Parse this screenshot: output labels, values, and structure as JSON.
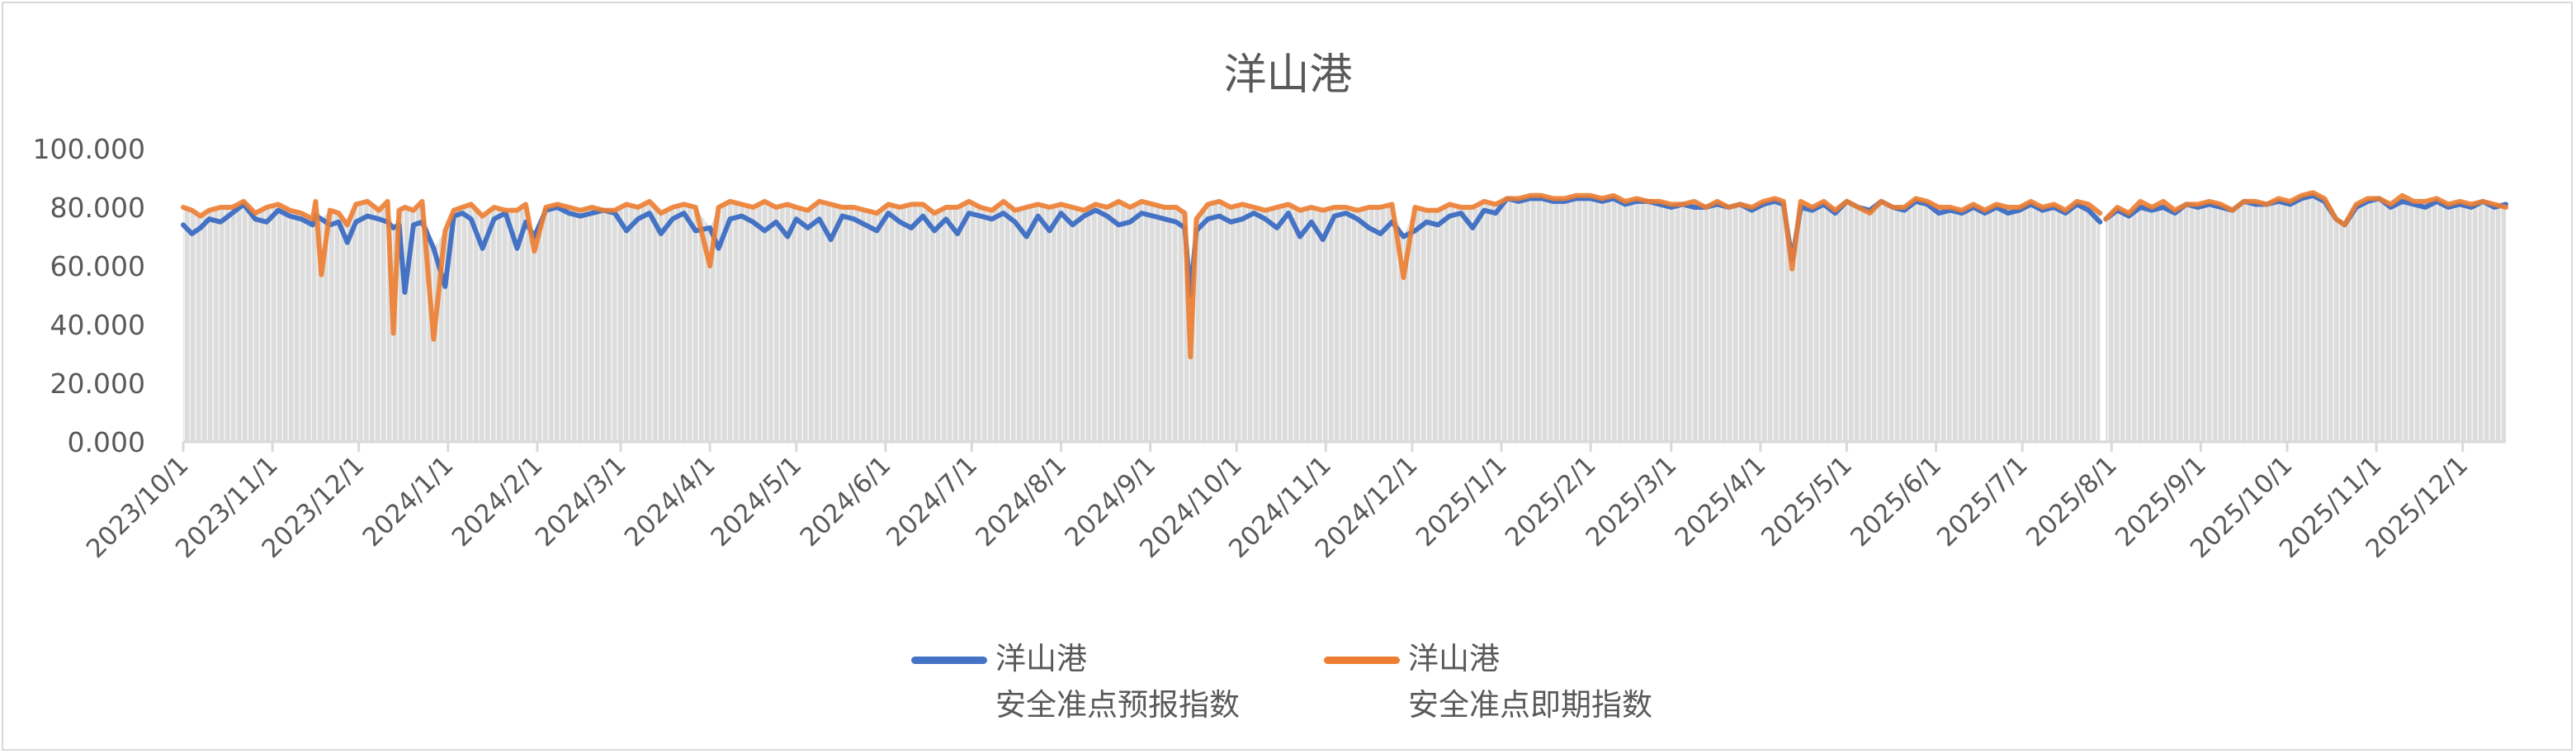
{
  "chart_data": {
    "type": "line",
    "title": "洋山港",
    "ylim": [
      0,
      100
    ],
    "y_tick_labels": [
      "0.000",
      "20.000",
      "40.000",
      "60.000",
      "80.000",
      "100.000"
    ],
    "y_ticks": [
      0,
      20,
      40,
      60,
      80,
      100
    ],
    "x_tick_labels": [
      "2023/10/1",
      "2023/11/1",
      "2023/12/1",
      "2024/1/1",
      "2024/2/1",
      "2024/3/1",
      "2024/4/1",
      "2024/5/1",
      "2024/6/1",
      "2024/7/1",
      "2024/8/1",
      "2024/9/1",
      "2024/10/1",
      "2024/11/1",
      "2024/12/1",
      "2025/1/1",
      "2025/2/1",
      "2025/3/1",
      "2025/4/1",
      "2025/5/1",
      "2025/6/1",
      "2025/7/1",
      "2025/8/1",
      "2025/9/1",
      "2025/10/1",
      "2025/11/1",
      "2025/12/1"
    ],
    "xlim": [
      "2023-10-01",
      "2025-12-16"
    ],
    "grid": false,
    "drop_lines": true,
    "legend_position": "bottom",
    "x": [
      "2023-10-01",
      "2023-10-04",
      "2023-10-07",
      "2023-10-10",
      "2023-10-14",
      "2023-10-18",
      "2023-10-22",
      "2023-10-26",
      "2023-10-30",
      "2023-11-03",
      "2023-11-07",
      "2023-11-11",
      "2023-11-15",
      "2023-11-16",
      "2023-11-18",
      "2023-11-21",
      "2023-11-24",
      "2023-11-27",
      "2023-11-30",
      "2023-12-04",
      "2023-12-08",
      "2023-12-11",
      "2023-12-13",
      "2023-12-15",
      "2023-12-17",
      "2023-12-20",
      "2023-12-23",
      "2023-12-27",
      "2023-12-31",
      "2024-01-03",
      "2024-01-06",
      "2024-01-09",
      "2024-01-13",
      "2024-01-17",
      "2024-01-21",
      "2024-01-25",
      "2024-01-28",
      "2024-01-31",
      "2024-02-04",
      "2024-02-08",
      "2024-02-12",
      "2024-02-16",
      "2024-02-20",
      "2024-02-24",
      "2024-02-28",
      "2024-03-03",
      "2024-03-07",
      "2024-03-11",
      "2024-03-15",
      "2024-03-19",
      "2024-03-23",
      "2024-03-27",
      "2024-04-01",
      "2024-04-04",
      "2024-04-08",
      "2024-04-12",
      "2024-04-16",
      "2024-04-20",
      "2024-04-24",
      "2024-04-28",
      "2024-05-01",
      "2024-05-05",
      "2024-05-09",
      "2024-05-13",
      "2024-05-17",
      "2024-05-21",
      "2024-05-25",
      "2024-05-29",
      "2024-06-02",
      "2024-06-06",
      "2024-06-10",
      "2024-06-14",
      "2024-06-18",
      "2024-06-22",
      "2024-06-26",
      "2024-06-30",
      "2024-07-04",
      "2024-07-08",
      "2024-07-12",
      "2024-07-16",
      "2024-07-20",
      "2024-07-24",
      "2024-07-28",
      "2024-08-01",
      "2024-08-05",
      "2024-08-09",
      "2024-08-13",
      "2024-08-17",
      "2024-08-21",
      "2024-08-25",
      "2024-08-29",
      "2024-09-02",
      "2024-09-06",
      "2024-09-10",
      "2024-09-13",
      "2024-09-15",
      "2024-09-17",
      "2024-09-21",
      "2024-09-25",
      "2024-09-29",
      "2024-10-03",
      "2024-10-07",
      "2024-10-11",
      "2024-10-15",
      "2024-10-19",
      "2024-10-23",
      "2024-10-27",
      "2024-10-31",
      "2024-11-04",
      "2024-11-08",
      "2024-11-12",
      "2024-11-16",
      "2024-11-20",
      "2024-11-24",
      "2024-11-28",
      "2024-12-02",
      "2024-12-06",
      "2024-12-10",
      "2024-12-14",
      "2024-12-18",
      "2024-12-22",
      "2024-12-26",
      "2024-12-30",
      "2025-01-03",
      "2025-01-07",
      "2025-01-11",
      "2025-01-15",
      "2025-01-19",
      "2025-01-23",
      "2025-01-27",
      "2025-02-01",
      "2025-02-05",
      "2025-02-09",
      "2025-02-13",
      "2025-02-17",
      "2025-02-21",
      "2025-02-25",
      "2025-03-01",
      "2025-03-05",
      "2025-03-09",
      "2025-03-13",
      "2025-03-17",
      "2025-03-21",
      "2025-03-25",
      "2025-03-29",
      "2025-04-02",
      "2025-04-06",
      "2025-04-09",
      "2025-04-12",
      "2025-04-15",
      "2025-04-19",
      "2025-04-23",
      "2025-04-27",
      "2025-05-01",
      "2025-05-05",
      "2025-05-09",
      "2025-05-13",
      "2025-05-17",
      "2025-05-21",
      "2025-05-25",
      "2025-05-29",
      "2025-06-02",
      "2025-06-06",
      "2025-06-10",
      "2025-06-14",
      "2025-06-18",
      "2025-06-22",
      "2025-06-26",
      "2025-06-30",
      "2025-07-04",
      "2025-07-08",
      "2025-07-12",
      "2025-07-16",
      "2025-07-20",
      "2025-07-24",
      "2025-07-28",
      "2025-07-29",
      "2025-07-30",
      "2025-08-03",
      "2025-08-07",
      "2025-08-11",
      "2025-08-15",
      "2025-08-19",
      "2025-08-23",
      "2025-08-27",
      "2025-08-31",
      "2025-09-04",
      "2025-09-08",
      "2025-09-12",
      "2025-09-16",
      "2025-09-20",
      "2025-09-24",
      "2025-09-28",
      "2025-10-02",
      "2025-10-06",
      "2025-10-10",
      "2025-10-14",
      "2025-10-18",
      "2025-10-21",
      "2025-10-25",
      "2025-10-29",
      "2025-11-02",
      "2025-11-06",
      "2025-11-10",
      "2025-11-14",
      "2025-11-18",
      "2025-11-22",
      "2025-11-26",
      "2025-11-30",
      "2025-12-04",
      "2025-12-08",
      "2025-12-12",
      "2025-12-16"
    ],
    "series": [
      {
        "name": "洋山港 安全准点预报指数",
        "name_lines": [
          "洋山港",
          "安全准点预报指数"
        ],
        "color": "#4472C4",
        "values": [
          74,
          71,
          73,
          76,
          75,
          78,
          81,
          76,
          75,
          79,
          77,
          76,
          74,
          77,
          76,
          74,
          75,
          68,
          75,
          77,
          76,
          75,
          73,
          74,
          51,
          74,
          75,
          66,
          53,
          77,
          78,
          76,
          66,
          76,
          78,
          66,
          75,
          70,
          79,
          80,
          78,
          77,
          78,
          79,
          78,
          72,
          76,
          78,
          71,
          76,
          78,
          72,
          73,
          66,
          76,
          77,
          75,
          72,
          75,
          70,
          76,
          73,
          76,
          69,
          77,
          76,
          74,
          72,
          78,
          75,
          73,
          77,
          72,
          76,
          71,
          78,
          77,
          76,
          78,
          75,
          70,
          77,
          72,
          78,
          74,
          77,
          79,
          77,
          74,
          75,
          78,
          77,
          76,
          75,
          73,
          50,
          72,
          76,
          77,
          75,
          76,
          78,
          76,
          73,
          78,
          70,
          75,
          69,
          77,
          78,
          76,
          73,
          71,
          75,
          70,
          72,
          75,
          74,
          77,
          78,
          73,
          79,
          78,
          83,
          82,
          83,
          83,
          82,
          82,
          83,
          83,
          82,
          83,
          81,
          82,
          82,
          81,
          80,
          81,
          80,
          80,
          81,
          80,
          81,
          79,
          81,
          82,
          81,
          62,
          80,
          79,
          81,
          78,
          82,
          80,
          79,
          82,
          80,
          79,
          82,
          81,
          78,
          79,
          78,
          80,
          78,
          80,
          78,
          79,
          81,
          79,
          80,
          78,
          81,
          79,
          75,
          null,
          76,
          79,
          77,
          80,
          79,
          80,
          78,
          81,
          80,
          81,
          80,
          79,
          82,
          81,
          81,
          82,
          81,
          83,
          84,
          82,
          76,
          74,
          80,
          82,
          83,
          80,
          82,
          81,
          80,
          82,
          80,
          81,
          80,
          82,
          80,
          81
        ]
      },
      {
        "name": "洋山港 安全准点即期指数",
        "name_lines": [
          "洋山港",
          "安全准点即期指数"
        ],
        "color": "#ED7D31",
        "values": [
          80,
          79,
          77,
          79,
          80,
          80,
          82,
          78,
          80,
          81,
          79,
          78,
          76,
          82,
          57,
          79,
          78,
          74,
          81,
          82,
          79,
          82,
          37,
          79,
          80,
          79,
          82,
          35,
          72,
          79,
          80,
          81,
          77,
          80,
          79,
          79,
          81,
          65,
          80,
          81,
          80,
          79,
          80,
          79,
          79,
          81,
          80,
          82,
          78,
          80,
          81,
          80,
          60,
          80,
          82,
          81,
          80,
          82,
          80,
          81,
          80,
          79,
          82,
          81,
          80,
          80,
          79,
          78,
          81,
          80,
          81,
          81,
          78,
          80,
          80,
          82,
          80,
          79,
          82,
          79,
          80,
          81,
          80,
          81,
          80,
          79,
          81,
          80,
          82,
          80,
          82,
          81,
          80,
          80,
          78,
          29,
          76,
          81,
          82,
          80,
          81,
          80,
          79,
          80,
          81,
          79,
          80,
          79,
          80,
          80,
          79,
          80,
          80,
          81,
          56,
          80,
          79,
          79,
          81,
          80,
          80,
          82,
          81,
          83,
          83,
          84,
          84,
          83,
          83,
          84,
          84,
          83,
          84,
          82,
          83,
          82,
          82,
          81,
          81,
          82,
          80,
          82,
          80,
          81,
          80,
          82,
          83,
          82,
          59,
          82,
          80,
          82,
          79,
          82,
          80,
          78,
          82,
          80,
          80,
          83,
          82,
          80,
          80,
          79,
          81,
          79,
          81,
          80,
          80,
          82,
          80,
          81,
          79,
          82,
          81,
          78,
          null,
          76,
          80,
          78,
          82,
          80,
          82,
          79,
          81,
          81,
          82,
          81,
          79,
          82,
          82,
          81,
          83,
          82,
          84,
          85,
          83,
          76,
          74,
          81,
          83,
          83,
          81,
          84,
          82,
          82,
          83,
          81,
          82,
          81,
          82,
          81,
          80
        ]
      }
    ]
  }
}
